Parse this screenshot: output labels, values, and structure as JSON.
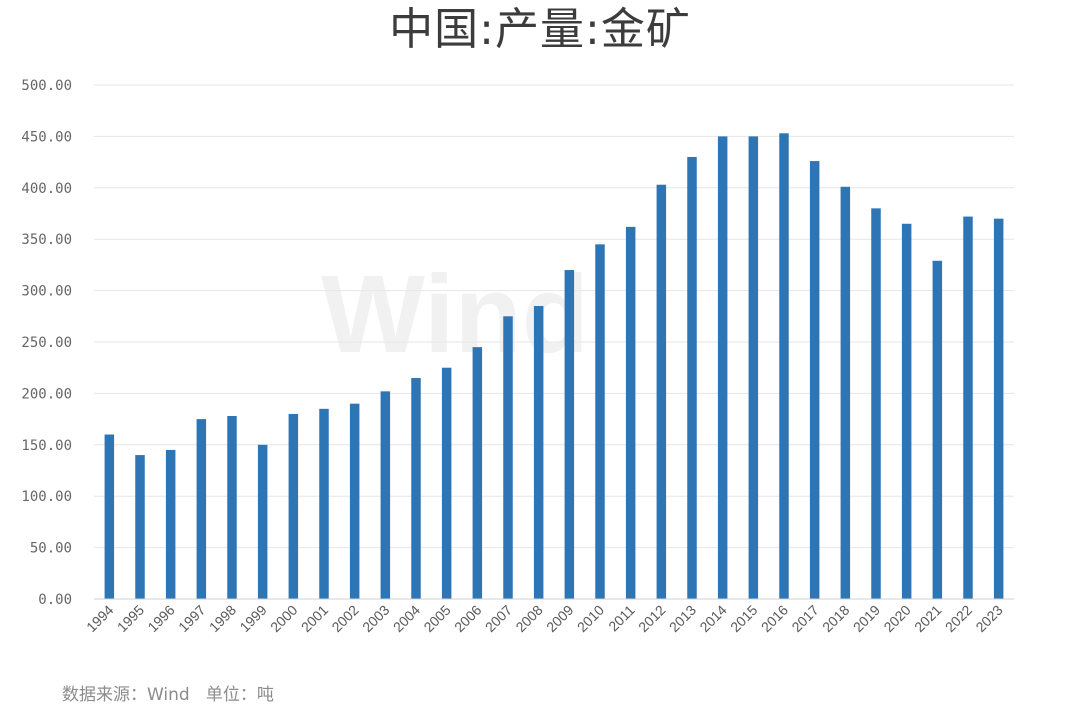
{
  "chart_data": {
    "type": "bar",
    "title": "中国:产量:金矿",
    "xlabel": "",
    "ylabel": "",
    "ylim": [
      0,
      500
    ],
    "y_ticks": [
      "0.00",
      "50.00",
      "100.00",
      "150.00",
      "200.00",
      "250.00",
      "300.00",
      "350.00",
      "400.00",
      "450.00",
      "500.00"
    ],
    "grid": true,
    "legend": "none",
    "bar_color": "#2e75b6",
    "grid_color": "#e6e6e6",
    "categories": [
      "1994",
      "1995",
      "1996",
      "1997",
      "1998",
      "1999",
      "2000",
      "2001",
      "2002",
      "2003",
      "2004",
      "2005",
      "2006",
      "2007",
      "2008",
      "2009",
      "2010",
      "2011",
      "2012",
      "2013",
      "2014",
      "2015",
      "2016",
      "2017",
      "2018",
      "2019",
      "2020",
      "2021",
      "2022",
      "2023"
    ],
    "series": [
      {
        "values": [
          160,
          140,
          145,
          175,
          178,
          150,
          180,
          185,
          190,
          202,
          215,
          225,
          245,
          275,
          285,
          320,
          345,
          362,
          403,
          430,
          450,
          450,
          453,
          426,
          401,
          380,
          365,
          329,
          372,
          370
        ]
      }
    ]
  },
  "watermark": "Wind",
  "source_note": "数据来源：Wind   单位：吨"
}
